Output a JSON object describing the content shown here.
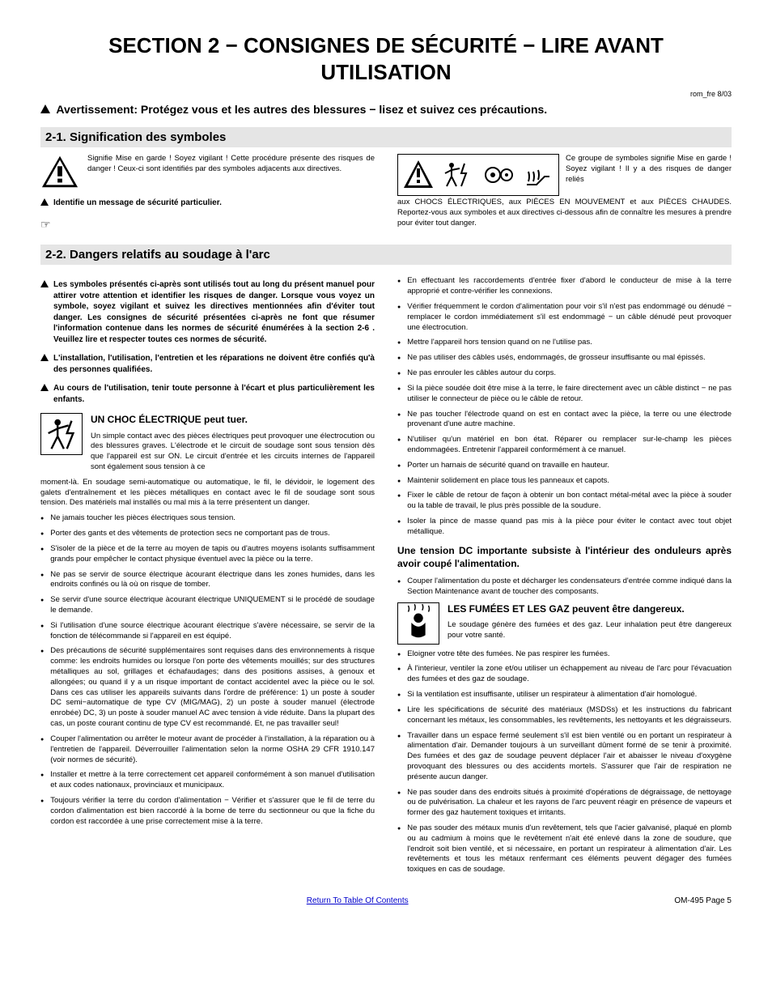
{
  "title": "SECTION 2 − CONSIGNES DE SÉCURITÉ − LIRE AVANT UTILISATION",
  "version": "rom_fre 8/03",
  "avert": "Avertissement: Protégez vous et les autres des blessures − lisez et suivez ces précautions.",
  "s21": {
    "header": "2-1.   Signification des symboles",
    "left_text": "Signifie Mise en garde ! Soyez vigilant ! Cette procédure présente des risques de danger ! Ceux-ci sont identifiés par des symboles adjacents aux directives.",
    "left_bold": "Identifie un message de sécurité particulier.",
    "right_text_1": "Ce groupe de symboles signifie Mise en garde ! Soyez vigilant ! Il y a des risques de danger reliés",
    "right_text_2": "aux CHOCS ÉLECTRIQUES, aux PIÈCES EN MOUVEMENT et aux PIÈCES CHAUDES. Reportez-vous aux symboles et aux directives ci-dessous afin de connaître les mesures à prendre pour éviter tout danger."
  },
  "s22": {
    "header": "2-2.   Dangers relatifs au soudage à l'arc",
    "tri1": "Les symboles présentés ci-après sont utilisés tout au long du présent manuel pour attirer votre attention et identifier les risques de danger. Lorsque vous voyez un symbole, soyez vigilant et suivez les directives mentionnées afin d'éviter tout danger. Les consignes de sécurité présentées ci-après ne font que résumer l'information contenue dans les normes de sécurité énumérées à la section 2-6 . Veuillez lire et respecter toutes ces normes de sécurité.",
    "tri2": "L'installation, l'utilisation, l'entretien et les réparations ne doivent être confiés qu'à des personnes qualifiées.",
    "tri3": "Au cours de l'utilisation, tenir toute personne à l'écart et plus particulièrement les enfants.",
    "shock_title": "UN CHOC ÉLECTRIQUE peut tuer.",
    "shock_text": "Un simple contact avec des pièces électriques peut provoquer une électrocution ou des blessures graves. L'électrode et le circuit de soudage sont sous tension dès que l'appareil est sur ON. Le circuit d'entrée et les circuits internes de l'appareil sont également sous tension à ce",
    "shock_cont": "moment-là. En soudage semi-automatique ou automatique, le fil, le dévidoir, le logement des galets d'entraînement et les pièces métalliques en contact avec le fil de soudage sont sous tension. Des matériels mal installés ou mal mis à la terre présentent un danger.",
    "left_bullets": [
      "Ne jamais toucher les pièces électriques sous tension.",
      "Porter des gants et des vêtements de protection secs ne comportant pas de trous.",
      "S'isoler de la pièce et de la terre au moyen de tapis ou d'autres moyens isolants suffisamment grands pour empêcher le contact physique éventuel avec la pièce ou la terre.",
      "Ne pas se servir de source électrique àcourant électrique dans les zones humides, dans les endroits confinés ou là où on risque de tomber.",
      "Se servir d'une source électrique àcourant électrique UNIQUEMENT si le procédé de soudage le demande.",
      "Si l'utilisation d'une source électrique àcourant électrique s'avère nécessaire, se servir de la fonction de télécommande si l'appareil en est équipé.",
      "Des précautions de sécurité supplémentaires sont requises dans des environnements à risque comme: les endroits humides ou lorsque l'on porte des vêtements mouillés; sur des structures métalliques au sol, grillages et échafaudages; dans des positions assises, à genoux et allongées; ou quand il y a un risque important de contact accidentel avec la pièce ou le sol. Dans ces cas utiliser les appareils suivants dans l'ordre de préférence: 1) un poste à souder DC semi−automatique de type CV (MIG/MAG), 2) un poste à souder manuel (électrode enrobée) DC, 3) un poste à souder manuel AC avec tension à vide réduite. Dans la plupart des cas, un poste courant continu de type CV est recommandé. Et, ne pas travailler seul!",
      "Couper l'alimentation ou arrêter le moteur avant de procéder à l'installation, à la réparation ou à l'entretien de l'appareil. Déverrouiller l'alimentation selon la norme OSHA 29 CFR 1910.147 (voir normes de sécurité).",
      "Installer et mettre à la terre correctement cet appareil conformément à son manuel d'utilisation et aux codes nationaux, provinciaux et municipaux.",
      "Toujours vérifier la terre du cordon d'alimentation − Vérifier et s'assurer que le fil de terre du cordon d'alimentation est bien raccordé à la borne de terre du sectionneur ou que la fiche du cordon est raccordée à une prise correctement mise à la terre."
    ],
    "right_bullets_top": [
      "En effectuant les raccordements d'entrée fixer d'abord le conducteur de mise à la terre approprié et contre-vérifier les connexions.",
      "Vérifier fréquemment le cordon d'alimentation pour voir s'il n'est pas endommagé ou dénudé − remplacer le cordon immédiatement s'il est endommagé − un câble dénudé peut provoquer une électrocution.",
      "Mettre l'appareil hors tension quand on ne l'utilise pas.",
      "Ne pas utiliser des câbles usés, endommagés, de grosseur insuffisante ou mal épissés.",
      "Ne pas enrouler les câbles autour du corps.",
      "Si la pièce soudée doit être mise à la terre, le faire directement avec un câble distinct − ne pas utiliser le connecteur de pièce ou le câble de retour.",
      "Ne pas toucher l'électrode quand on est en contact avec la pièce, la terre ou une électrode provenant d'une autre machine.",
      "N'utiliser qu'un matériel en bon état. Réparer ou remplacer sur-le-champ les pièces endommagées. Entretenir l'appareil conformément à ce manuel.",
      "Porter un harnais de sécurité quand on travaille en hauteur.",
      "Maintenir solidement en place tous les panneaux et capots.",
      "Fixer le câble de retour de façon à obtenir un bon contact métal-métal avec la pièce à souder ou la table de travail, le plus près possible de la soudure.",
      "Isoler la pince de masse quand pas mis à la pièce pour éviter le contact avec tout objet métallique."
    ],
    "dc_heading": "Une tension DC importante subsiste à l'intérieur des onduleurs après avoir coupé l'alimentation.",
    "dc_bullet": "Couper l'alimentation du poste et décharger les condensateurs d'entrée comme indiqué dans la Section Maintenance avant de toucher des composants.",
    "fumes_title": "LES FUMÉES ET LES GAZ peuvent être dangereux.",
    "fumes_text": "Le soudage génère des fumées et des gaz. Leur inhalation peut être dangereux pour votre santé.",
    "right_bullets_bottom": [
      "Eloigner votre tête des fumées. Ne pas respirer les fumées.",
      "À l'interieur, ventiler la zone et/ou utiliser un échappement au niveau de l'arc pour l'évacuation des fumées et des gaz de soudage.",
      "Si la ventilation est insuffisante, utiliser un respirateur à alimentation d'air homologué.",
      "Lire les spécifications de sécurité des matériaux (MSDSs) et les instructions du fabricant concernant les métaux, les consommables, les revêtements, les nettoyants et les dégraisseurs.",
      "Travailler dans un espace fermé seulement s'il est bien ventilé ou en portant un respirateur à alimentation d'air. Demander toujours à un surveillant dûment formé de se tenir à proximité. Des fumées et des gaz de soudage peuvent déplacer l'air et abaisser le niveau d'oxygène provoquant des blessures ou des accidents mortels. S'assurer que l'air de respiration ne présente aucun danger.",
      "Ne pas souder dans des endroits situés à proximité d'opérations de dégraissage, de nettoyage ou de pulvérisation. La chaleur et les rayons de l'arc peuvent réagir en présence de vapeurs et former des gaz hautement toxiques et irritants.",
      "Ne pas souder des métaux munis d'un revêtement, tels que l'acier galvanisé, plaqué en plomb ou au cadmium à moins que le revêtement n'ait été enlevé dans la zone de soudure, que l'endroit soit bien ventilé, et si nécessaire, en portant un respirateur à alimentation d'air. Les revêtements et tous les métaux renfermant ces éléments peuvent dégager des fumées toxiques en cas de soudage."
    ]
  },
  "footer": {
    "link": "Return To Table Of Contents",
    "page": "OM-495 Page 5"
  }
}
